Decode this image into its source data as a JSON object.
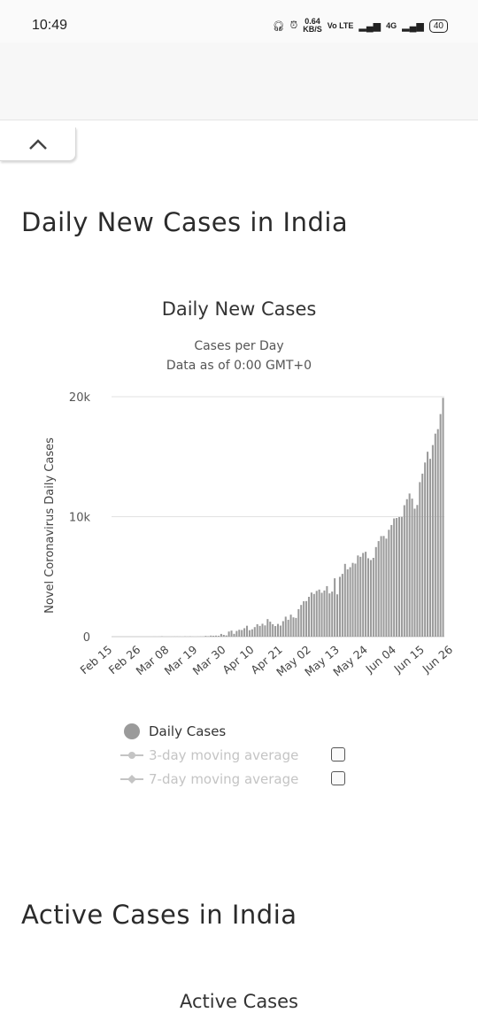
{
  "status_bar": {
    "time": "10:49",
    "speed_value": "0.64",
    "speed_unit": "KB/S",
    "network_1": "Vo LTE",
    "network_2": "4G",
    "battery": "40"
  },
  "section_daily": {
    "heading": "Daily New Cases in India",
    "chart_title": "Daily New Cases",
    "subtitle_1": "Cases per Day",
    "subtitle_2": "Data as of 0:00 GMT+0"
  },
  "legend": {
    "daily": "Daily Cases",
    "avg3": "3-day moving average",
    "avg7": "7-day moving average"
  },
  "section_active": {
    "heading": "Active Cases in India",
    "chart_title": "Active Cases"
  },
  "colors": {
    "bar": "#9a9a9a",
    "grid": "#e2e2e2",
    "legend_off": "#c4c4c4"
  },
  "chart_data": {
    "type": "bar",
    "title": "Daily New Cases",
    "subtitle": [
      "Cases per Day",
      "Data as of 0:00 GMT+0"
    ],
    "ylabel": "Novel Coronavirus Daily Cases",
    "xlabel": "",
    "ylim": [
      0,
      20000
    ],
    "yticks": [
      "0",
      "10k",
      "20k"
    ],
    "xticks": [
      "Feb 15",
      "Feb 26",
      "Mar 08",
      "Mar 19",
      "Mar 30",
      "Apr 10",
      "Apr 21",
      "May 02",
      "May 13",
      "May 24",
      "Jun 04",
      "Jun 15",
      "Jun 26"
    ],
    "grid": true,
    "legend_position": "bottom",
    "series": [
      {
        "name": "Daily Cases",
        "start": "Feb 15",
        "values": [
          0,
          0,
          0,
          0,
          0,
          0,
          0,
          0,
          0,
          0,
          0,
          0,
          0,
          0,
          0,
          0,
          2,
          0,
          1,
          22,
          2,
          1,
          3,
          5,
          9,
          7,
          5,
          0,
          15,
          6,
          18,
          4,
          2,
          9,
          14,
          16,
          60,
          40,
          88,
          74,
          86,
          70,
          227,
          146,
          101,
          427,
          505,
          235,
          475,
          573,
          554,
          705,
          909,
          540,
          612,
          796,
          1035,
          896,
          1076,
          938,
          1463,
          1248,
          1034,
          883,
          1061,
          922,
          1292,
          1667,
          1408,
          1835,
          1607,
          1561,
          2293,
          2644,
          2952,
          2964,
          3320,
          3677,
          3559,
          3814,
          3925,
          3656,
          3848,
          4213,
          3604,
          3757,
          4864,
          3525,
          4987,
          5233,
          6066,
          5609,
          5790,
          6148,
          6088,
          6767,
          6654,
          6977,
          7075,
          6535,
          6387,
          6568,
          7466,
          7964,
          8380,
          8392,
          8171,
          8909,
          9304,
          9851,
          9887,
          9971,
          9983,
          10956,
          11458,
          11929,
          11502,
          10667,
          10974,
          12881,
          13586,
          14516,
          15413,
          14821,
          15968,
          16922,
          17296,
          18552,
          19906
        ]
      }
    ]
  }
}
